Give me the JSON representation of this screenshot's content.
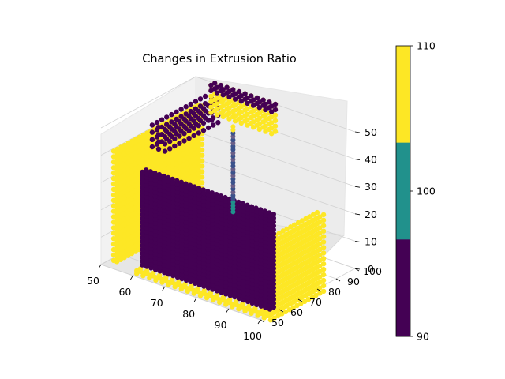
{
  "chart_data": {
    "type": "scatter",
    "projection": "3d",
    "title": "Changes in Extrusion Ratio",
    "x_axis": {
      "ticks": [
        50,
        60,
        70,
        80,
        90,
        100
      ],
      "range": [
        50,
        100
      ]
    },
    "y_axis": {
      "ticks": [
        50,
        60,
        70,
        80,
        90,
        100
      ],
      "range": [
        50,
        100
      ]
    },
    "z_axis": {
      "ticks": [
        0,
        10,
        20,
        30,
        40,
        50
      ],
      "range": [
        0,
        50
      ]
    },
    "grid": true,
    "pane_color": "#f2f2f2",
    "colormap": "viridis (3 levels)",
    "colorbar": {
      "ticks": [
        "90",
        "100",
        "110"
      ],
      "colors": [
        "#440154",
        "#21918c",
        "#fde725"
      ],
      "range": [
        90,
        110
      ]
    },
    "series": [
      {
        "values_color": "#fde725",
        "region": "left wall",
        "x_range": [
          50,
          52
        ],
        "y_range": [
          55,
          100
        ],
        "z_range": [
          0,
          40
        ],
        "value": 110
      },
      {
        "values_color": "#440154",
        "region": "main purple wall",
        "x_range": [
          60,
          100
        ],
        "y_range": [
          55,
          56
        ],
        "z_range": [
          0,
          40
        ],
        "value": 90
      },
      {
        "values_color": "#fde725",
        "region": "right wall",
        "x_range": [
          100,
          102
        ],
        "y_range": [
          55,
          80
        ],
        "z_range": [
          0,
          30
        ],
        "value": 110
      },
      {
        "values_color": "#fde725",
        "region": "upper back wall",
        "x_range": [
          55,
          75
        ],
        "y_range": [
          80,
          100
        ],
        "z_range": [
          40,
          50
        ],
        "value": 110
      },
      {
        "values_color": "#440154",
        "region": "upper purple strip",
        "x_range": [
          55,
          75
        ],
        "y_range": [
          80,
          100
        ],
        "z_range": [
          40,
          50
        ],
        "value": 90
      },
      {
        "values_color": "#21918c",
        "region": "vertical column",
        "x_range": [
          75,
          76
        ],
        "y_range": [
          75,
          76
        ],
        "z_range": [
          20,
          52
        ],
        "value": 100
      }
    ]
  }
}
